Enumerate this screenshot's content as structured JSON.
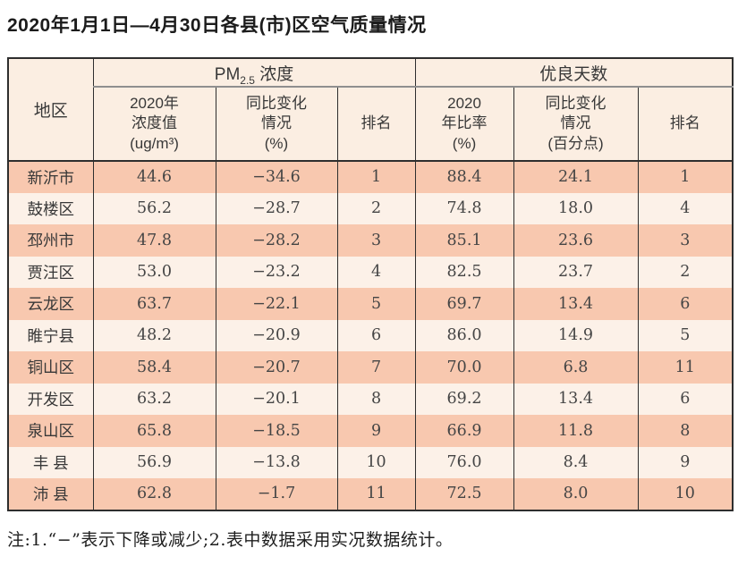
{
  "title": "2020年1月1日—4月30日各县(市)区空气质量情况",
  "footnote": "注:1.“−”表示下降或减少;2.表中数据采用实况数据统计。",
  "table": {
    "header": {
      "region": "地区",
      "pm_prefix": "PM",
      "pm_sub": "2.5",
      "pm_suffix": " 浓度",
      "good_days": "优良天数",
      "cols": [
        {
          "lines": [
            "2020年",
            "浓度值",
            "(ug/m³)"
          ]
        },
        {
          "lines": [
            "同比变化",
            "情况",
            "(%)"
          ]
        },
        {
          "lines": [
            "排名",
            "",
            ""
          ]
        },
        {
          "lines": [
            "2020",
            "年比率",
            "(%)"
          ]
        },
        {
          "lines": [
            "同比变化",
            "情况",
            "(百分点)"
          ]
        },
        {
          "lines": [
            "排名",
            "",
            ""
          ]
        }
      ]
    },
    "rows": [
      {
        "region": "新沂市",
        "pm_value": "44.6",
        "pm_change": "−34.6",
        "pm_rank": "1",
        "days_rate": "88.4",
        "days_change": "24.1",
        "days_rank": "1"
      },
      {
        "region": "鼓楼区",
        "pm_value": "56.2",
        "pm_change": "−28.7",
        "pm_rank": "2",
        "days_rate": "74.8",
        "days_change": "18.0",
        "days_rank": "4"
      },
      {
        "region": "邳州市",
        "pm_value": "47.8",
        "pm_change": "−28.2",
        "pm_rank": "3",
        "days_rate": "85.1",
        "days_change": "23.6",
        "days_rank": "3"
      },
      {
        "region": "贾汪区",
        "pm_value": "53.0",
        "pm_change": "−23.2",
        "pm_rank": "4",
        "days_rate": "82.5",
        "days_change": "23.7",
        "days_rank": "2"
      },
      {
        "region": "云龙区",
        "pm_value": "63.7",
        "pm_change": "−22.1",
        "pm_rank": "5",
        "days_rate": "69.7",
        "days_change": "13.4",
        "days_rank": "6"
      },
      {
        "region": "睢宁县",
        "pm_value": "48.2",
        "pm_change": "−20.9",
        "pm_rank": "6",
        "days_rate": "86.0",
        "days_change": "14.9",
        "days_rank": "5"
      },
      {
        "region": "铜山区",
        "pm_value": "58.4",
        "pm_change": "−20.7",
        "pm_rank": "7",
        "days_rate": "70.0",
        "days_change": "6.8",
        "days_rank": "11"
      },
      {
        "region": "开发区",
        "pm_value": "63.2",
        "pm_change": "−20.1",
        "pm_rank": "8",
        "days_rate": "69.2",
        "days_change": "13.4",
        "days_rank": "6"
      },
      {
        "region": "泉山区",
        "pm_value": "65.8",
        "pm_change": "−18.5",
        "pm_rank": "9",
        "days_rate": "66.9",
        "days_change": "11.8",
        "days_rank": "8"
      },
      {
        "region": "丰 县",
        "pm_value": "56.9",
        "pm_change": "−13.8",
        "pm_rank": "10",
        "days_rate": "76.0",
        "days_change": "8.4",
        "days_rank": "9"
      },
      {
        "region": "沛 县",
        "pm_value": "62.8",
        "pm_change": "−1.7",
        "pm_rank": "11",
        "days_rate": "72.5",
        "days_change": "8.0",
        "days_rank": "10"
      }
    ]
  }
}
